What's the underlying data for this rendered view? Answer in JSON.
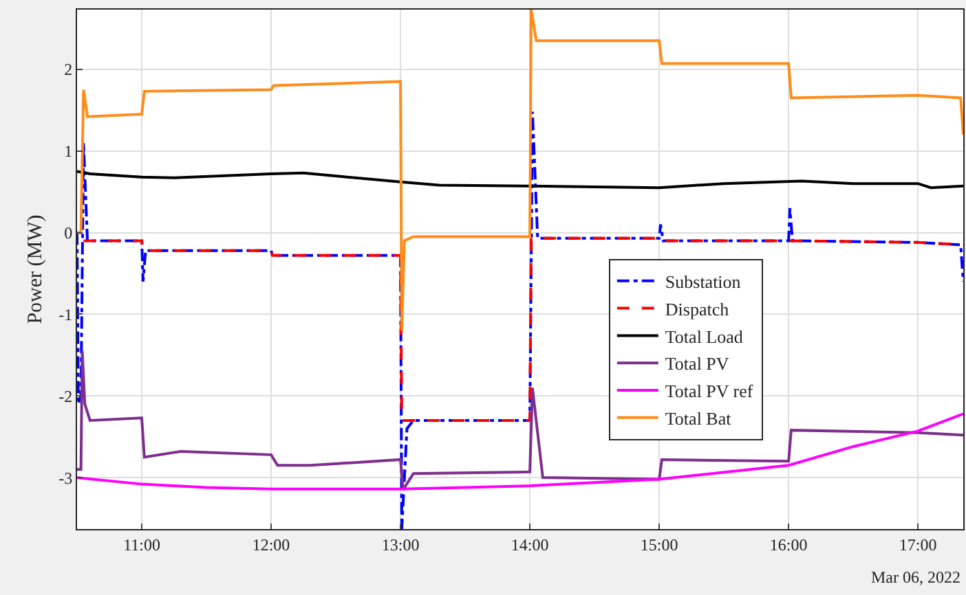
{
  "chart_data": {
    "type": "line",
    "ylabel": "Power (MW)",
    "annotations": [
      "Mar 06, 2022"
    ],
    "xlim": [
      10.5,
      17.35
    ],
    "ylim": [
      -3.63,
      2.73
    ],
    "xticks": [
      {
        "value": 11,
        "label": "11:00"
      },
      {
        "value": 12,
        "label": "12:00"
      },
      {
        "value": 13,
        "label": "13:00"
      },
      {
        "value": 14,
        "label": "14:00"
      },
      {
        "value": 15,
        "label": "15:00"
      },
      {
        "value": 16,
        "label": "16:00"
      },
      {
        "value": 17,
        "label": "17:00"
      }
    ],
    "yticks": [
      -3,
      -2,
      -1,
      0,
      1,
      2
    ],
    "grid": true,
    "legend": "right",
    "series": [
      {
        "name": "Substation",
        "color": "#0000ff",
        "line_style": "dashdot",
        "x": [
          10.5,
          10.51,
          10.53,
          10.55,
          10.58,
          11.0,
          11.01,
          11.03,
          12.0,
          12.01,
          13.0,
          13.01,
          13.05,
          13.1,
          14.0,
          14.02,
          14.06,
          15.0,
          15.01,
          15.03,
          16.0,
          16.01,
          16.03,
          17.0,
          17.33,
          17.35
        ],
        "values": [
          0,
          -2.1,
          -2.0,
          1.1,
          -0.1,
          -0.1,
          -0.6,
          -0.22,
          -0.22,
          -0.28,
          -0.28,
          -3.63,
          -2.4,
          -2.3,
          -2.3,
          1.48,
          -0.07,
          -0.07,
          0.1,
          -0.1,
          -0.1,
          0.3,
          -0.1,
          -0.12,
          -0.15,
          -0.6
        ]
      },
      {
        "name": "Dispatch",
        "color": "#ff0000",
        "line_style": "dashed",
        "x": [
          10.55,
          11.0,
          11.01,
          12.0,
          12.01,
          13.0,
          13.01,
          14.0,
          14.01,
          15.0,
          15.01,
          16.0,
          17.0,
          17.35
        ],
        "values": [
          -0.1,
          -0.1,
          -0.22,
          -0.22,
          -0.28,
          -0.28,
          -2.3,
          -2.3,
          -0.07,
          -0.07,
          -0.1,
          -0.1,
          -0.12,
          -0.15
        ]
      },
      {
        "name": "Total Load",
        "color": "#000000",
        "line_style": "solid",
        "x": [
          10.5,
          10.6,
          11.0,
          11.25,
          12.0,
          12.25,
          13.0,
          13.3,
          14.0,
          15.0,
          15.5,
          16.1,
          16.5,
          17.0,
          17.1,
          17.35
        ],
        "values": [
          0.75,
          0.72,
          0.68,
          0.67,
          0.72,
          0.73,
          0.62,
          0.58,
          0.57,
          0.55,
          0.6,
          0.63,
          0.6,
          0.6,
          0.55,
          0.57
        ]
      },
      {
        "name": "Total PV",
        "color": "#7e2f8e",
        "line_style": "solid",
        "x": [
          10.5,
          10.53,
          10.54,
          10.56,
          10.6,
          11.0,
          11.02,
          11.3,
          12.0,
          12.05,
          12.3,
          13.0,
          13.02,
          13.1,
          14.0,
          14.02,
          14.1,
          15.0,
          15.02,
          16.0,
          16.02,
          17.0,
          17.35
        ],
        "values": [
          -2.9,
          -2.9,
          -1.45,
          -2.1,
          -2.3,
          -2.27,
          -2.75,
          -2.68,
          -2.72,
          -2.85,
          -2.85,
          -2.78,
          -3.15,
          -2.95,
          -2.93,
          -1.9,
          -3.0,
          -3.02,
          -2.78,
          -2.8,
          -2.42,
          -2.45,
          -2.48
        ]
      },
      {
        "name": "Total PV ref",
        "color": "#ff00ff",
        "line_style": "solid",
        "x": [
          10.5,
          11.0,
          11.5,
          12.0,
          13.0,
          13.5,
          14.0,
          15.0,
          16.0,
          16.5,
          17.0,
          17.35
        ],
        "values": [
          -3.0,
          -3.08,
          -3.12,
          -3.14,
          -3.14,
          -3.12,
          -3.1,
          -3.02,
          -2.85,
          -2.62,
          -2.43,
          -2.22
        ]
      },
      {
        "name": "Total Bat",
        "color": "#ff8c1a",
        "line_style": "solid",
        "x": [
          10.5,
          10.53,
          10.55,
          10.58,
          11.0,
          11.02,
          12.0,
          12.02,
          13.0,
          13.01,
          13.03,
          13.1,
          14.0,
          14.01,
          14.05,
          15.0,
          15.02,
          16.0,
          16.02,
          17.0,
          17.33,
          17.35
        ],
        "values": [
          0,
          0,
          1.75,
          1.42,
          1.45,
          1.73,
          1.75,
          1.8,
          1.85,
          -1.2,
          -0.1,
          -0.05,
          -0.05,
          2.73,
          2.35,
          2.35,
          2.07,
          2.07,
          1.65,
          1.68,
          1.65,
          1.2
        ]
      }
    ]
  }
}
